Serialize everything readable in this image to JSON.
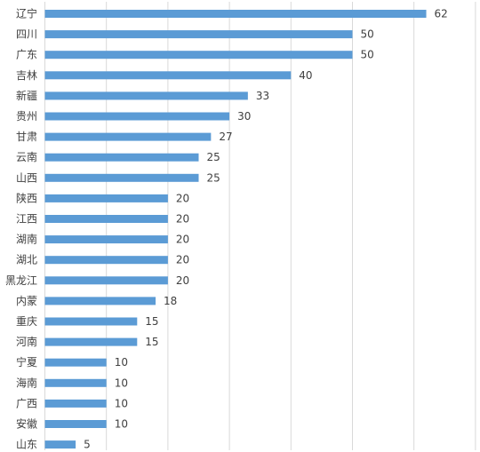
{
  "chart_data": {
    "type": "bar",
    "orientation": "horizontal",
    "categories": [
      "辽宁",
      "四川",
      "广东",
      "吉林",
      "新疆",
      "贵州",
      "甘肃",
      "云南",
      "山西",
      "陕西",
      "江西",
      "湖南",
      "湖北",
      "黑龙江",
      "内蒙",
      "重庆",
      "河南",
      "宁夏",
      "海南",
      "广西",
      "安徽",
      "山东"
    ],
    "values": [
      62,
      50,
      50,
      40,
      33,
      30,
      27,
      25,
      25,
      20,
      20,
      20,
      20,
      20,
      18,
      15,
      15,
      10,
      10,
      10,
      10,
      5
    ],
    "xlim": [
      0,
      70
    ],
    "grid": "vertical",
    "data_labels": true,
    "bar_color": "#5b9bd5",
    "grid_color": "#d9d9d9"
  }
}
